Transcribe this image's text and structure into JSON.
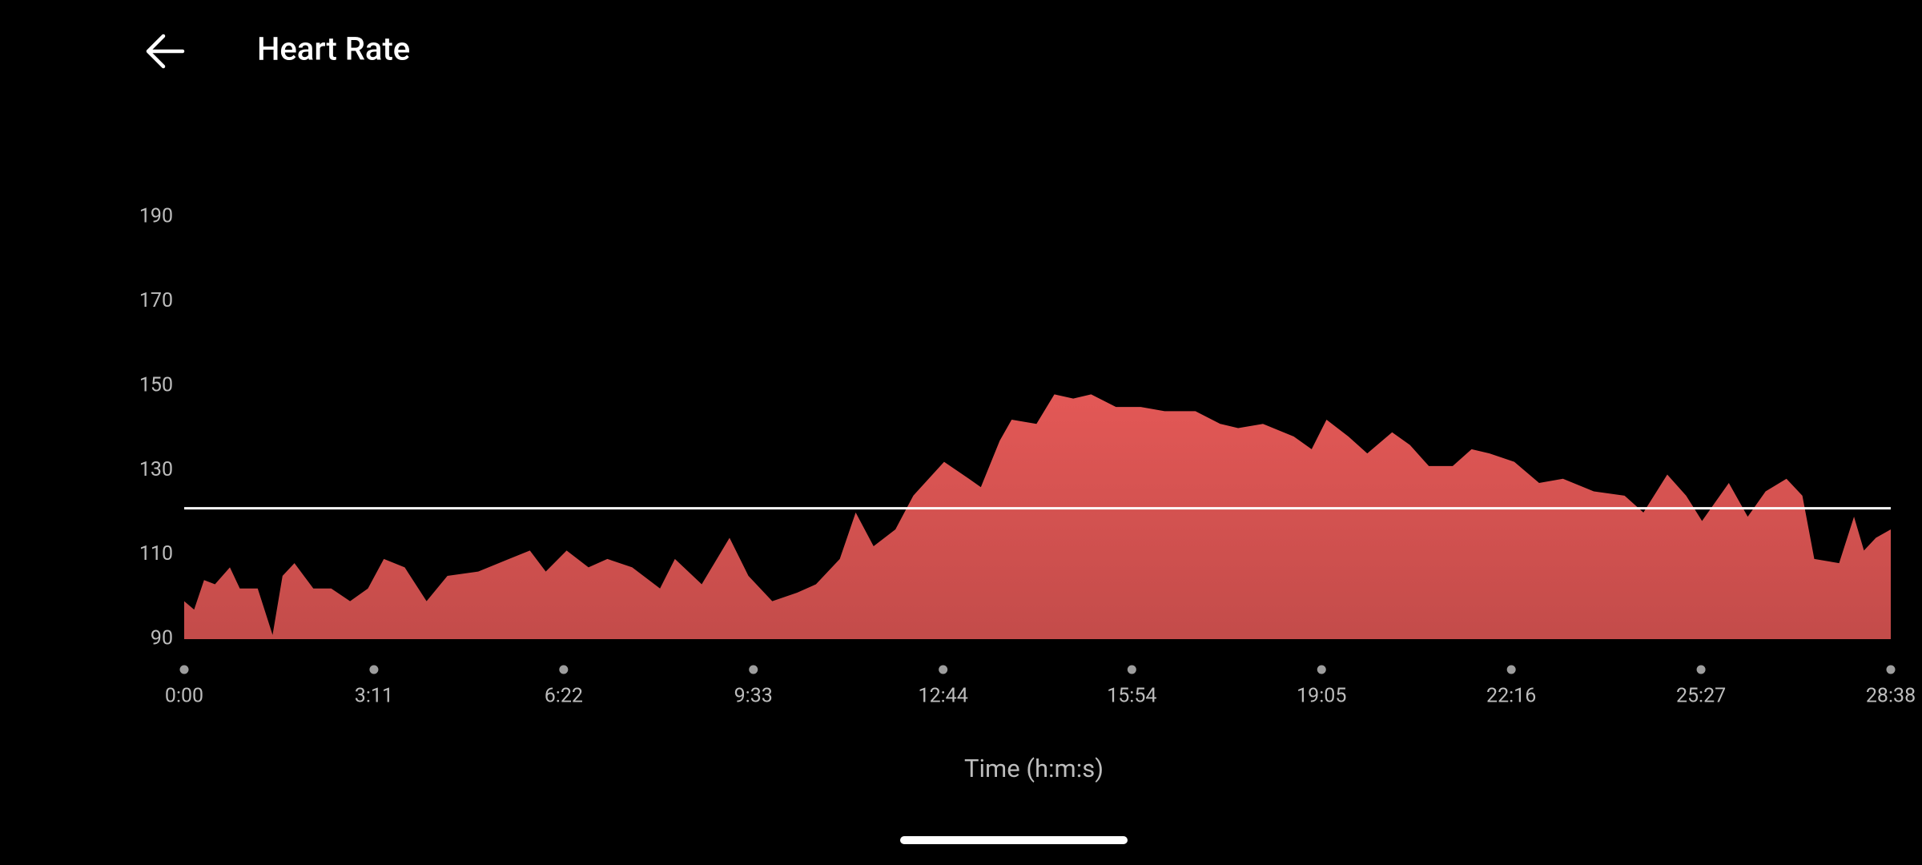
{
  "header": {
    "title": "Heart Rate"
  },
  "chart_data": {
    "type": "area",
    "x": [
      0,
      10,
      20,
      31,
      46,
      56,
      74,
      89,
      99,
      111,
      130,
      148,
      167,
      185,
      201,
      222,
      244,
      265,
      296,
      327,
      348,
      364,
      385,
      407,
      426,
      451,
      479,
      494,
      521,
      549,
      568,
      592,
      617,
      636,
      660,
      676,
      694,
      716,
      734,
      765,
      790,
      802,
      821,
      833,
      858,
      876,
      895,
      913,
      938,
      963,
      987,
      1018,
      1043,
      1061,
      1086,
      1117,
      1135,
      1150,
      1172,
      1191,
      1216,
      1234,
      1253,
      1277,
      1296,
      1314,
      1339,
      1364,
      1388,
      1419,
      1450,
      1469,
      1493,
      1512,
      1528,
      1555,
      1574,
      1592,
      1613,
      1629,
      1641,
      1666,
      1681,
      1691,
      1703,
      1718
    ],
    "values": [
      99,
      97,
      104,
      103,
      107,
      102,
      102,
      91,
      105,
      108,
      102,
      102,
      99,
      102,
      109,
      107,
      99,
      105,
      106,
      109,
      111,
      106,
      111,
      107,
      109,
      107,
      102,
      109,
      103,
      114,
      105,
      99,
      101,
      103,
      109,
      120,
      112,
      116,
      124,
      132,
      128,
      126,
      137,
      142,
      141,
      148,
      147,
      148,
      145,
      145,
      144,
      144,
      141,
      140,
      141,
      138,
      135,
      142,
      138,
      134,
      139,
      136,
      131,
      131,
      135,
      134,
      132,
      127,
      128,
      125,
      124,
      120,
      129,
      124,
      118,
      127,
      119,
      125,
      128,
      124,
      109,
      108,
      119,
      111,
      114,
      116
    ],
    "color": "#e35856",
    "reference_line": {
      "value": 121,
      "color": "#ffffff"
    },
    "xlim": [
      0,
      1718
    ],
    "xticks": [
      {
        "value": 0,
        "label": "0:00"
      },
      {
        "value": 191,
        "label": "3:11"
      },
      {
        "value": 382,
        "label": "6:22"
      },
      {
        "value": 573,
        "label": "9:33"
      },
      {
        "value": 764,
        "label": "12:44"
      },
      {
        "value": 954,
        "label": "15:54"
      },
      {
        "value": 1145,
        "label": "19:05"
      },
      {
        "value": 1336,
        "label": "22:16"
      },
      {
        "value": 1527,
        "label": "25:27"
      },
      {
        "value": 1718,
        "label": "28:38"
      }
    ],
    "ylim": [
      90,
      190
    ],
    "yticks": [
      90,
      110,
      130,
      150,
      170,
      190
    ],
    "xlabel": "Time (h:m:s)"
  }
}
